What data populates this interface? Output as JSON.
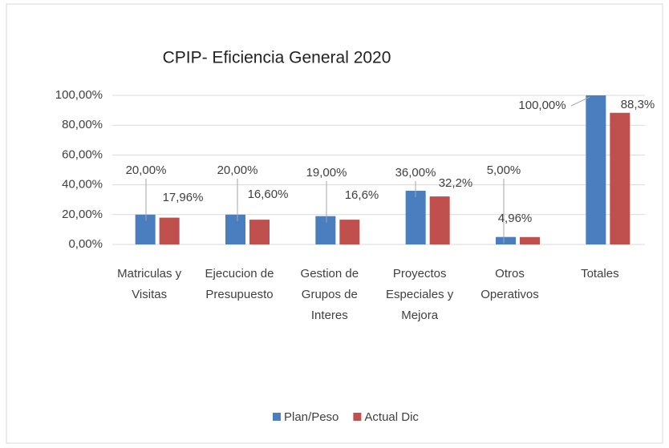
{
  "chart_data": {
    "type": "bar",
    "title": "CPIP- Eficiencia General 2020",
    "categories": [
      [
        "Matriculas y",
        "Visitas"
      ],
      [
        "Ejecucion de",
        "Presupuesto"
      ],
      [
        "Gestion de",
        "Grupos de",
        "Interes"
      ],
      [
        "Proyectos",
        "Especiales y",
        "Mejora"
      ],
      [
        "Otros",
        "Operativos"
      ],
      [
        "Totales"
      ]
    ],
    "series": [
      {
        "name": "Plan/Peso",
        "color": "#4a7ebf",
        "values": [
          20,
          20,
          19,
          36,
          5,
          100
        ],
        "value_labels": [
          "20,00%",
          "20,00%",
          "19,00%",
          "36,00%",
          "5,00%",
          "100,00%"
        ]
      },
      {
        "name": "Actual Dic",
        "color": "#c0504d",
        "values": [
          17.96,
          16.6,
          16.6,
          32.2,
          4.96,
          88.3
        ],
        "value_labels": [
          "17,96%",
          "16,60%",
          "16,6%",
          "32,2%",
          "4,96%",
          "88,3%"
        ]
      }
    ],
    "ylim": [
      0,
      100
    ],
    "yticks": [
      {
        "value": 0,
        "label": "0,00%"
      },
      {
        "value": 20,
        "label": "20,00%"
      },
      {
        "value": 40,
        "label": "40,00%"
      },
      {
        "value": 60,
        "label": "60,00%"
      },
      {
        "value": 80,
        "label": "80,00%"
      },
      {
        "value": 100,
        "label": "100,00%"
      }
    ],
    "grid": true,
    "legend": "bottom"
  }
}
